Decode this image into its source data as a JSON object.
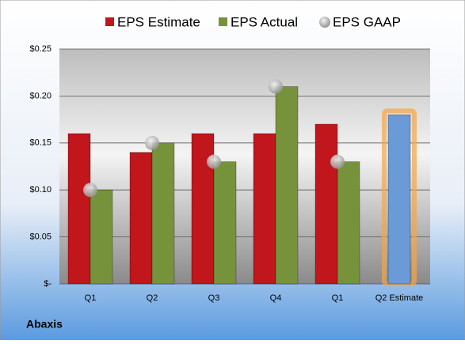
{
  "chart_data": {
    "type": "bar",
    "title": "Abaxis",
    "categories": [
      "Q1",
      "Q2",
      "Q3",
      "Q4",
      "Q1",
      "Q2 Estimate"
    ],
    "series": [
      {
        "name": "EPS Estimate",
        "color": "#c0161c",
        "values": [
          0.16,
          0.14,
          0.16,
          0.16,
          0.17,
          0.18
        ],
        "point_colors": [
          "#c0161c",
          "#c0161c",
          "#c0161c",
          "#c0161c",
          "#c0161c",
          "#6a9bd8"
        ]
      },
      {
        "name": "EPS Actual",
        "color": "#76933c",
        "values": [
          0.1,
          0.15,
          0.13,
          0.21,
          0.13,
          null
        ]
      },
      {
        "name": "EPS GAAP",
        "color": "#a0a0a0",
        "type": "scatter",
        "values": [
          0.1,
          0.15,
          0.13,
          0.21,
          0.13,
          null
        ]
      }
    ],
    "ylim": [
      0,
      0.25
    ],
    "yticks": [
      {
        "value": 0,
        "label": "$-"
      },
      {
        "value": 0.05,
        "label": "$0.05"
      },
      {
        "value": 0.1,
        "label": "$0.10"
      },
      {
        "value": 0.15,
        "label": "$0.15"
      },
      {
        "value": 0.2,
        "label": "$0.20"
      },
      {
        "value": 0.25,
        "label": "$0.25"
      }
    ],
    "grid": true
  }
}
